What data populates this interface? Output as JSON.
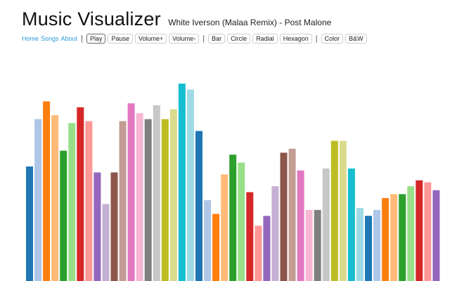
{
  "header": {
    "title": "Music Visualizer",
    "subtitle": "White Iverson (Malaa Remix) - Post Malone"
  },
  "nav": {
    "links": [
      "Home",
      "Songs",
      "About"
    ]
  },
  "toolbar": {
    "playback": [
      "Play",
      "Pause",
      "Volume+",
      "Volume-"
    ],
    "shapes": [
      "Bar",
      "Circle",
      "Radial",
      "Hexagon"
    ],
    "colors": [
      "Color",
      "B&W"
    ]
  },
  "visualizer": {
    "mode": "Bar",
    "color_mode": "Color",
    "palette": [
      "#1f77b4",
      "#aec7e8",
      "#ff7f0e",
      "#ffbb78",
      "#2ca02c",
      "#98df8a",
      "#d62728",
      "#ff9896",
      "#9467bd",
      "#c5b0d5",
      "#8c564b",
      "#c49c94",
      "#e377c2",
      "#f7b6d2",
      "#7f7f7f",
      "#c7c7c7",
      "#bcbd22",
      "#dbdb8d",
      "#17becf",
      "#9edae5"
    ],
    "levels": [
      0.58,
      0.82,
      0.91,
      0.84,
      0.66,
      0.8,
      0.88,
      0.81,
      0.55,
      0.39,
      0.55,
      0.81,
      0.9,
      0.85,
      0.82,
      0.89,
      0.82,
      0.87,
      1.0,
      0.97,
      0.76,
      0.41,
      0.34,
      0.54,
      0.64,
      0.6,
      0.45,
      0.28,
      0.33,
      0.48,
      0.65,
      0.67,
      0.56,
      0.36,
      0.36,
      0.57,
      0.71,
      0.71,
      0.57,
      0.37,
      0.33,
      0.36,
      0.42,
      0.44,
      0.44,
      0.48,
      0.51,
      0.5,
      0.46
    ]
  }
}
